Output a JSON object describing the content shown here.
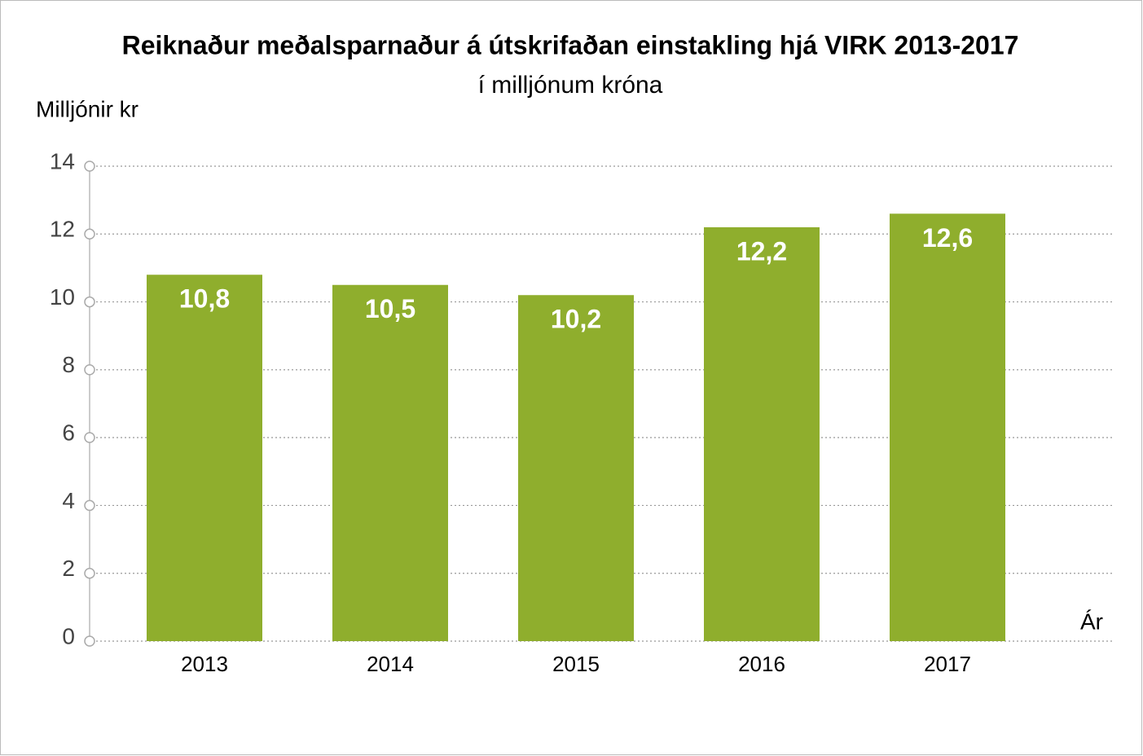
{
  "chart_data": {
    "type": "bar",
    "title": "Reiknaður meðalsparnaður á útskrifaðan einstakling hjá VIRK 2013-2017",
    "subtitle": "í milljónum króna",
    "ylabel": "Milljónir kr",
    "xlabel": "Ár",
    "categories": [
      "2013",
      "2014",
      "2015",
      "2016",
      "2017"
    ],
    "values": [
      10.8,
      10.5,
      10.2,
      12.2,
      12.6
    ],
    "value_labels": [
      "10,8",
      "10,5",
      "10,2",
      "12,2",
      "12,6"
    ],
    "color": "#8fae2d",
    "ylim": [
      0,
      14
    ],
    "yticks": [
      0,
      2,
      4,
      6,
      8,
      10,
      12,
      14
    ],
    "grid": true
  }
}
